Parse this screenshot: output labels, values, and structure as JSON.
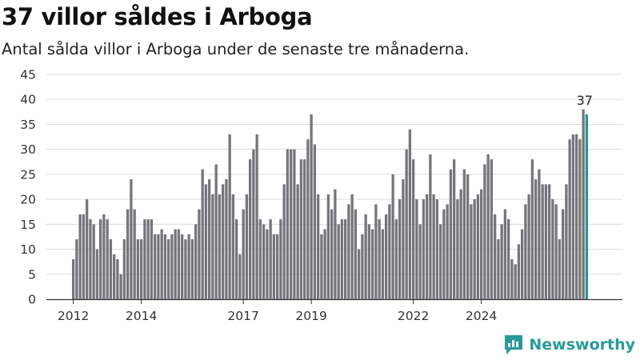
{
  "header": {
    "title": "37 villor såldes i Arboga",
    "subtitle": "Antal sålda villor i Arboga under de senaste tre månaderna."
  },
  "brand": {
    "name": "Newsworthy",
    "logo_icon": "newsworthy-logo-icon",
    "color": "#2a9a99"
  },
  "colors": {
    "bar": "#76757b",
    "highlight": "#1f9a93",
    "grid": "#dcdcdc",
    "axis": "#333333"
  },
  "chart_data": {
    "type": "bar",
    "title": "37 villor såldes i Arboga",
    "subtitle": "Antal sålda villor i Arboga under de senaste tre månaderna.",
    "xlabel": "",
    "ylabel": "",
    "ylim": [
      0,
      45
    ],
    "yticks": [
      0,
      5,
      10,
      15,
      20,
      25,
      30,
      35,
      40,
      45
    ],
    "grid": true,
    "legend": "none",
    "x_start": "2011-12",
    "x_end": "2024-12",
    "xticks": [
      {
        "label": "2012",
        "index": 0
      },
      {
        "label": "2014",
        "index": 20
      },
      {
        "label": "2017",
        "index": 50
      },
      {
        "label": "2019",
        "index": 70
      },
      {
        "label": "2022",
        "index": 100
      },
      {
        "label": "2024",
        "index": 120
      }
    ],
    "values": [
      8,
      12,
      17,
      17,
      20,
      16,
      15,
      10,
      16,
      17,
      16,
      12,
      9,
      8,
      5,
      12,
      18,
      24,
      18,
      12,
      12,
      16,
      16,
      16,
      13,
      13,
      14,
      13,
      12,
      13,
      14,
      14,
      13,
      12,
      13,
      12,
      15,
      18,
      26,
      23,
      24,
      21,
      27,
      21,
      23,
      24,
      33,
      21,
      16,
      9,
      18,
      21,
      28,
      30,
      33,
      16,
      15,
      14,
      16,
      13,
      13,
      16,
      23,
      30,
      30,
      30,
      23,
      28,
      28,
      32,
      37,
      31,
      21,
      13,
      14,
      21,
      18,
      22,
      15,
      16,
      16,
      19,
      21,
      18,
      10,
      13,
      17,
      15,
      14,
      19,
      16,
      14,
      17,
      19,
      25,
      16,
      20,
      24,
      30,
      34,
      28,
      20,
      15,
      20,
      21,
      29,
      21,
      20,
      15,
      18,
      19,
      26,
      28,
      20,
      22,
      26,
      25,
      19,
      20,
      21,
      22,
      27,
      29,
      28,
      17,
      12,
      15,
      18,
      16,
      8,
      7,
      11,
      14,
      19,
      21,
      28,
      24,
      26,
      23,
      23,
      23,
      20,
      19,
      12,
      18,
      23,
      32,
      33,
      33,
      32,
      38,
      37
    ],
    "highlight_last": true,
    "data_labels": [
      {
        "index": 151,
        "text": "37"
      }
    ]
  }
}
